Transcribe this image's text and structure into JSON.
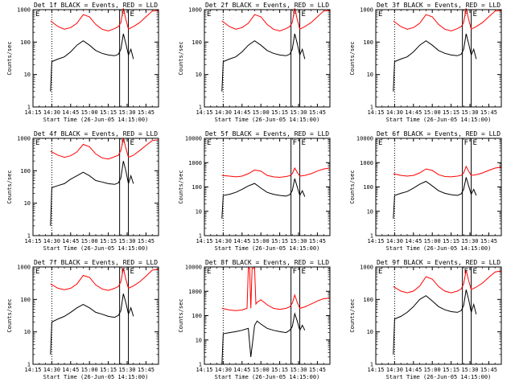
{
  "figure": {
    "title_template": "Det {d} BLACK = Events, RED = LLD",
    "xlabel": "Start Time (26-Jun-05 14:15:00)",
    "ylabel": "Counts/sec",
    "x_ticks": [
      "14:15",
      "14:30",
      "14:45",
      "15:00",
      "15:15",
      "15:30",
      "15:45"
    ],
    "colors": {
      "events": "#000000",
      "lld": "#ff0000",
      "background": "#ffffff"
    },
    "markers": [
      "E",
      "F",
      "E"
    ]
  },
  "chart_data": [
    {
      "type": "line",
      "title": "Det 1f BLACK = Events, RED = LLD",
      "xlabel": "Start Time (26-Jun-05 14:15:00)",
      "ylabel": "Counts/sec",
      "ylog": true,
      "ylim": [
        1,
        1000
      ],
      "y_ticks": [
        "1",
        "10",
        "100",
        "1000"
      ],
      "x_range_min": [
        0,
        100
      ],
      "vlines_dotted_min": [
        15
      ],
      "vlines_solid_min": [
        69,
        76
      ],
      "series": [
        {
          "name": "Events (BLACK)",
          "color": "#000000",
          "x": [
            14,
            15,
            20,
            25,
            30,
            35,
            40,
            45,
            50,
            55,
            60,
            65,
            68,
            70,
            72,
            74,
            76,
            78,
            80
          ],
          "y": [
            3,
            25,
            30,
            35,
            50,
            80,
            110,
            80,
            55,
            45,
            40,
            38,
            42,
            60,
            180,
            90,
            40,
            60,
            30
          ]
        },
        {
          "name": "LLD (RED)",
          "color": "#ff0000",
          "x": [
            14,
            20,
            25,
            30,
            35,
            40,
            45,
            50,
            55,
            60,
            65,
            68,
            70,
            72,
            74,
            76,
            80,
            85,
            90,
            95,
            100
          ],
          "y": [
            450,
            300,
            250,
            280,
            380,
            700,
            600,
            350,
            250,
            220,
            260,
            300,
            400,
            1100,
            500,
            250,
            300,
            400,
            600,
            900,
            950
          ]
        }
      ]
    },
    {
      "type": "line",
      "title": "Det 2f BLACK = Events, RED = LLD",
      "xlabel": "Start Time (26-Jun-05 14:15:00)",
      "ylabel": "Counts/sec",
      "ylog": true,
      "ylim": [
        1,
        1000
      ],
      "y_ticks": [
        "1",
        "10",
        "100",
        "1000"
      ],
      "x_range_min": [
        0,
        100
      ],
      "vlines_dotted_min": [
        15
      ],
      "vlines_solid_min": [
        69,
        76
      ],
      "series": [
        {
          "name": "Events (BLACK)",
          "color": "#000000",
          "x": [
            14,
            15,
            20,
            25,
            30,
            35,
            40,
            45,
            50,
            55,
            60,
            65,
            68,
            70,
            72,
            74,
            76,
            78,
            80
          ],
          "y": [
            3,
            25,
            30,
            35,
            50,
            80,
            110,
            80,
            55,
            45,
            40,
            38,
            42,
            60,
            180,
            90,
            40,
            60,
            30
          ]
        },
        {
          "name": "LLD (RED)",
          "color": "#ff0000",
          "x": [
            14,
            20,
            25,
            30,
            35,
            40,
            45,
            50,
            55,
            60,
            65,
            68,
            70,
            72,
            74,
            76,
            80,
            85,
            90,
            95,
            100
          ],
          "y": [
            450,
            300,
            250,
            280,
            380,
            700,
            600,
            350,
            250,
            220,
            260,
            300,
            400,
            1100,
            500,
            250,
            300,
            400,
            600,
            900,
            950
          ]
        }
      ]
    },
    {
      "type": "line",
      "title": "Det 3f BLACK = Events, RED = LLD",
      "xlabel": "Start Time (26-Jun-05 14:15:00)",
      "ylabel": "Counts/sec",
      "ylog": true,
      "ylim": [
        1,
        1000
      ],
      "y_ticks": [
        "1",
        "10",
        "100",
        "1000"
      ],
      "x_range_min": [
        0,
        100
      ],
      "vlines_dotted_min": [
        15
      ],
      "vlines_solid_min": [
        69,
        76
      ],
      "series": [
        {
          "name": "Events (BLACK)",
          "color": "#000000",
          "x": [
            14,
            15,
            20,
            25,
            30,
            35,
            40,
            45,
            50,
            55,
            60,
            65,
            68,
            70,
            72,
            74,
            76,
            78,
            80
          ],
          "y": [
            3,
            25,
            30,
            35,
            50,
            80,
            110,
            80,
            55,
            45,
            40,
            38,
            42,
            60,
            180,
            90,
            40,
            60,
            30
          ]
        },
        {
          "name": "LLD (RED)",
          "color": "#ff0000",
          "x": [
            14,
            20,
            25,
            30,
            35,
            40,
            45,
            50,
            55,
            60,
            65,
            68,
            70,
            72,
            74,
            76,
            80,
            85,
            90,
            95,
            100
          ],
          "y": [
            450,
            300,
            250,
            280,
            380,
            700,
            600,
            350,
            250,
            220,
            260,
            300,
            400,
            1100,
            500,
            250,
            300,
            400,
            600,
            900,
            950
          ]
        }
      ]
    },
    {
      "type": "line",
      "title": "Det 4f BLACK = Events, RED = LLD",
      "xlabel": "Start Time (26-Jun-05 14:15:00)",
      "ylabel": "Counts/sec",
      "ylog": true,
      "ylim": [
        1,
        1000
      ],
      "y_ticks": [
        "1",
        "10",
        "100",
        "1000"
      ],
      "x_range_min": [
        0,
        100
      ],
      "vlines_dotted_min": [
        15
      ],
      "vlines_solid_min": [
        69,
        76
      ],
      "series": [
        {
          "name": "Events (BLACK)",
          "color": "#000000",
          "x": [
            14,
            15,
            20,
            25,
            30,
            35,
            40,
            45,
            50,
            55,
            60,
            65,
            68,
            70,
            72,
            74,
            76,
            78,
            80
          ],
          "y": [
            2,
            30,
            35,
            40,
            55,
            70,
            90,
            70,
            50,
            45,
            40,
            38,
            42,
            60,
            200,
            100,
            40,
            70,
            40
          ]
        },
        {
          "name": "LLD (RED)",
          "color": "#ff0000",
          "x": [
            14,
            20,
            25,
            30,
            35,
            40,
            45,
            50,
            55,
            60,
            65,
            68,
            70,
            72,
            74,
            76,
            80,
            85,
            90,
            95,
            100
          ],
          "y": [
            400,
            300,
            260,
            290,
            380,
            650,
            550,
            330,
            250,
            230,
            270,
            300,
            420,
            1000,
            500,
            260,
            300,
            420,
            600,
            850,
            900
          ]
        }
      ]
    },
    {
      "type": "line",
      "title": "Det 5f BLACK = Events, RED = LLD",
      "xlabel": "Start Time (26-Jun-05 14:15:00)",
      "ylabel": "Counts/sec",
      "ylog": true,
      "ylim": [
        1,
        10000
      ],
      "y_ticks": [
        "1",
        "10",
        "100",
        "1000",
        "10000"
      ],
      "x_range_min": [
        0,
        100
      ],
      "vlines_dotted_min": [
        15
      ],
      "vlines_solid_min": [
        69,
        76
      ],
      "series": [
        {
          "name": "Events (BLACK)",
          "color": "#000000",
          "x": [
            14,
            15,
            20,
            25,
            30,
            35,
            40,
            45,
            50,
            55,
            60,
            65,
            68,
            70,
            72,
            74,
            76,
            78,
            80
          ],
          "y": [
            5,
            45,
            50,
            60,
            80,
            110,
            140,
            90,
            60,
            50,
            45,
            42,
            48,
            70,
            220,
            100,
            45,
            70,
            40
          ]
        },
        {
          "name": "LLD (RED)",
          "color": "#ff0000",
          "x": [
            14,
            20,
            25,
            30,
            35,
            40,
            45,
            50,
            55,
            60,
            65,
            68,
            70,
            72,
            74,
            76,
            80,
            85,
            90,
            95,
            100
          ],
          "y": [
            300,
            280,
            260,
            280,
            350,
            500,
            450,
            300,
            260,
            250,
            270,
            290,
            350,
            600,
            400,
            280,
            300,
            350,
            450,
            550,
            600
          ]
        }
      ]
    },
    {
      "type": "line",
      "title": "Det 6f BLACK = Events, RED = LLD",
      "xlabel": "Start Time (26-Jun-05 14:15:00)",
      "ylabel": "Counts/sec",
      "ylog": true,
      "ylim": [
        1,
        10000
      ],
      "y_ticks": [
        "1",
        "10",
        "100",
        "1000",
        "10000"
      ],
      "x_range_min": [
        0,
        100
      ],
      "vlines_dotted_min": [
        15
      ],
      "vlines_solid_min": [
        69,
        76
      ],
      "series": [
        {
          "name": "Events (BLACK)",
          "color": "#000000",
          "x": [
            14,
            15,
            20,
            25,
            30,
            35,
            40,
            45,
            50,
            55,
            60,
            65,
            68,
            70,
            72,
            74,
            76,
            78,
            80
          ],
          "y": [
            5,
            45,
            55,
            65,
            90,
            130,
            170,
            110,
            70,
            55,
            48,
            45,
            52,
            80,
            250,
            110,
            50,
            80,
            45
          ]
        },
        {
          "name": "LLD (RED)",
          "color": "#ff0000",
          "x": [
            14,
            20,
            25,
            30,
            35,
            40,
            45,
            50,
            55,
            60,
            65,
            68,
            70,
            72,
            74,
            76,
            80,
            85,
            90,
            95,
            100
          ],
          "y": [
            350,
            300,
            280,
            300,
            380,
            550,
            480,
            320,
            270,
            260,
            280,
            300,
            380,
            700,
            450,
            300,
            320,
            380,
            480,
            600,
            650
          ]
        }
      ]
    },
    {
      "type": "line",
      "title": "Det 7f BLACK = Events, RED = LLD",
      "xlabel": "Start Time (26-Jun-05 14:15:00)",
      "ylabel": "Counts/sec",
      "ylog": true,
      "ylim": [
        1,
        1000
      ],
      "y_ticks": [
        "1",
        "10",
        "100",
        "1000"
      ],
      "x_range_min": [
        0,
        100
      ],
      "vlines_dotted_min": [
        15
      ],
      "vlines_solid_min": [
        69,
        76
      ],
      "series": [
        {
          "name": "Events (BLACK)",
          "color": "#000000",
          "x": [
            14,
            15,
            20,
            25,
            30,
            35,
            40,
            45,
            50,
            55,
            60,
            65,
            68,
            70,
            72,
            74,
            76,
            78,
            80
          ],
          "y": [
            2,
            20,
            25,
            30,
            40,
            55,
            70,
            55,
            40,
            35,
            30,
            28,
            32,
            45,
            150,
            80,
            35,
            55,
            30
          ]
        },
        {
          "name": "LLD (RED)",
          "color": "#ff0000",
          "x": [
            14,
            20,
            25,
            30,
            35,
            40,
            45,
            50,
            55,
            60,
            65,
            68,
            70,
            72,
            74,
            76,
            80,
            85,
            90,
            95,
            100
          ],
          "y": [
            300,
            220,
            200,
            220,
            300,
            550,
            480,
            280,
            210,
            190,
            220,
            250,
            350,
            900,
            420,
            220,
            260,
            350,
            520,
            800,
            850
          ]
        }
      ]
    },
    {
      "type": "line",
      "title": "Det 8f BLACK = Events, RED = LLD",
      "xlabel": "Start Time (26-Jun-05 14:15:00)",
      "ylabel": "Counts/sec",
      "ylog": true,
      "ylim": [
        1,
        10000
      ],
      "y_ticks": [
        "1",
        "10",
        "100",
        "1000",
        "10000"
      ],
      "x_range_min": [
        0,
        100
      ],
      "vlines_dotted_min": [
        15
      ],
      "vlines_solid_min": [
        69,
        76
      ],
      "series": [
        {
          "name": "Events (BLACK)",
          "color": "#000000",
          "x": [
            14,
            15,
            20,
            25,
            30,
            35,
            37,
            40,
            42,
            45,
            50,
            55,
            60,
            65,
            68,
            70,
            72,
            74,
            76,
            78,
            80
          ],
          "y": [
            1,
            18,
            20,
            22,
            25,
            30,
            2,
            40,
            60,
            45,
            30,
            25,
            22,
            20,
            25,
            35,
            120,
            60,
            25,
            40,
            25
          ]
        },
        {
          "name": "LLD (RED)",
          "color": "#ff0000",
          "x": [
            14,
            20,
            25,
            30,
            34,
            35,
            36,
            37,
            38,
            40,
            41,
            42,
            45,
            50,
            55,
            60,
            65,
            68,
            70,
            72,
            74,
            76,
            80,
            85,
            90,
            95,
            100
          ],
          "y": [
            200,
            170,
            160,
            170,
            200,
            9000,
            9000,
            200,
            9000,
            9000,
            300,
            350,
            450,
            280,
            200,
            180,
            200,
            230,
            320,
            700,
            350,
            200,
            230,
            300,
            400,
            500,
            520
          ]
        }
      ]
    },
    {
      "type": "line",
      "title": "Det 9f BLACK = Events, RED = LLD",
      "xlabel": "Start Time (26-Jun-05 14:15:00)",
      "ylabel": "Counts/sec",
      "ylog": true,
      "ylim": [
        1,
        1000
      ],
      "y_ticks": [
        "1",
        "10",
        "100",
        "1000"
      ],
      "x_range_min": [
        0,
        100
      ],
      "vlines_dotted_min": [
        15
      ],
      "vlines_solid_min": [
        69,
        76
      ],
      "series": [
        {
          "name": "Events (BLACK)",
          "color": "#000000",
          "x": [
            14,
            15,
            20,
            25,
            30,
            35,
            40,
            45,
            50,
            55,
            60,
            65,
            68,
            70,
            72,
            74,
            76,
            78,
            80
          ],
          "y": [
            2,
            25,
            30,
            40,
            60,
            100,
            130,
            90,
            60,
            48,
            42,
            40,
            45,
            65,
            200,
            100,
            40,
            70,
            35
          ]
        },
        {
          "name": "LLD (RED)",
          "color": "#ff0000",
          "x": [
            14,
            20,
            25,
            30,
            35,
            40,
            45,
            50,
            55,
            60,
            65,
            68,
            70,
            72,
            74,
            76,
            80,
            85,
            90,
            95,
            100
          ],
          "y": [
            250,
            180,
            160,
            180,
            260,
            500,
            420,
            250,
            180,
            160,
            180,
            210,
            300,
            800,
            380,
            200,
            240,
            320,
            480,
            700,
            750
          ]
        }
      ]
    }
  ]
}
